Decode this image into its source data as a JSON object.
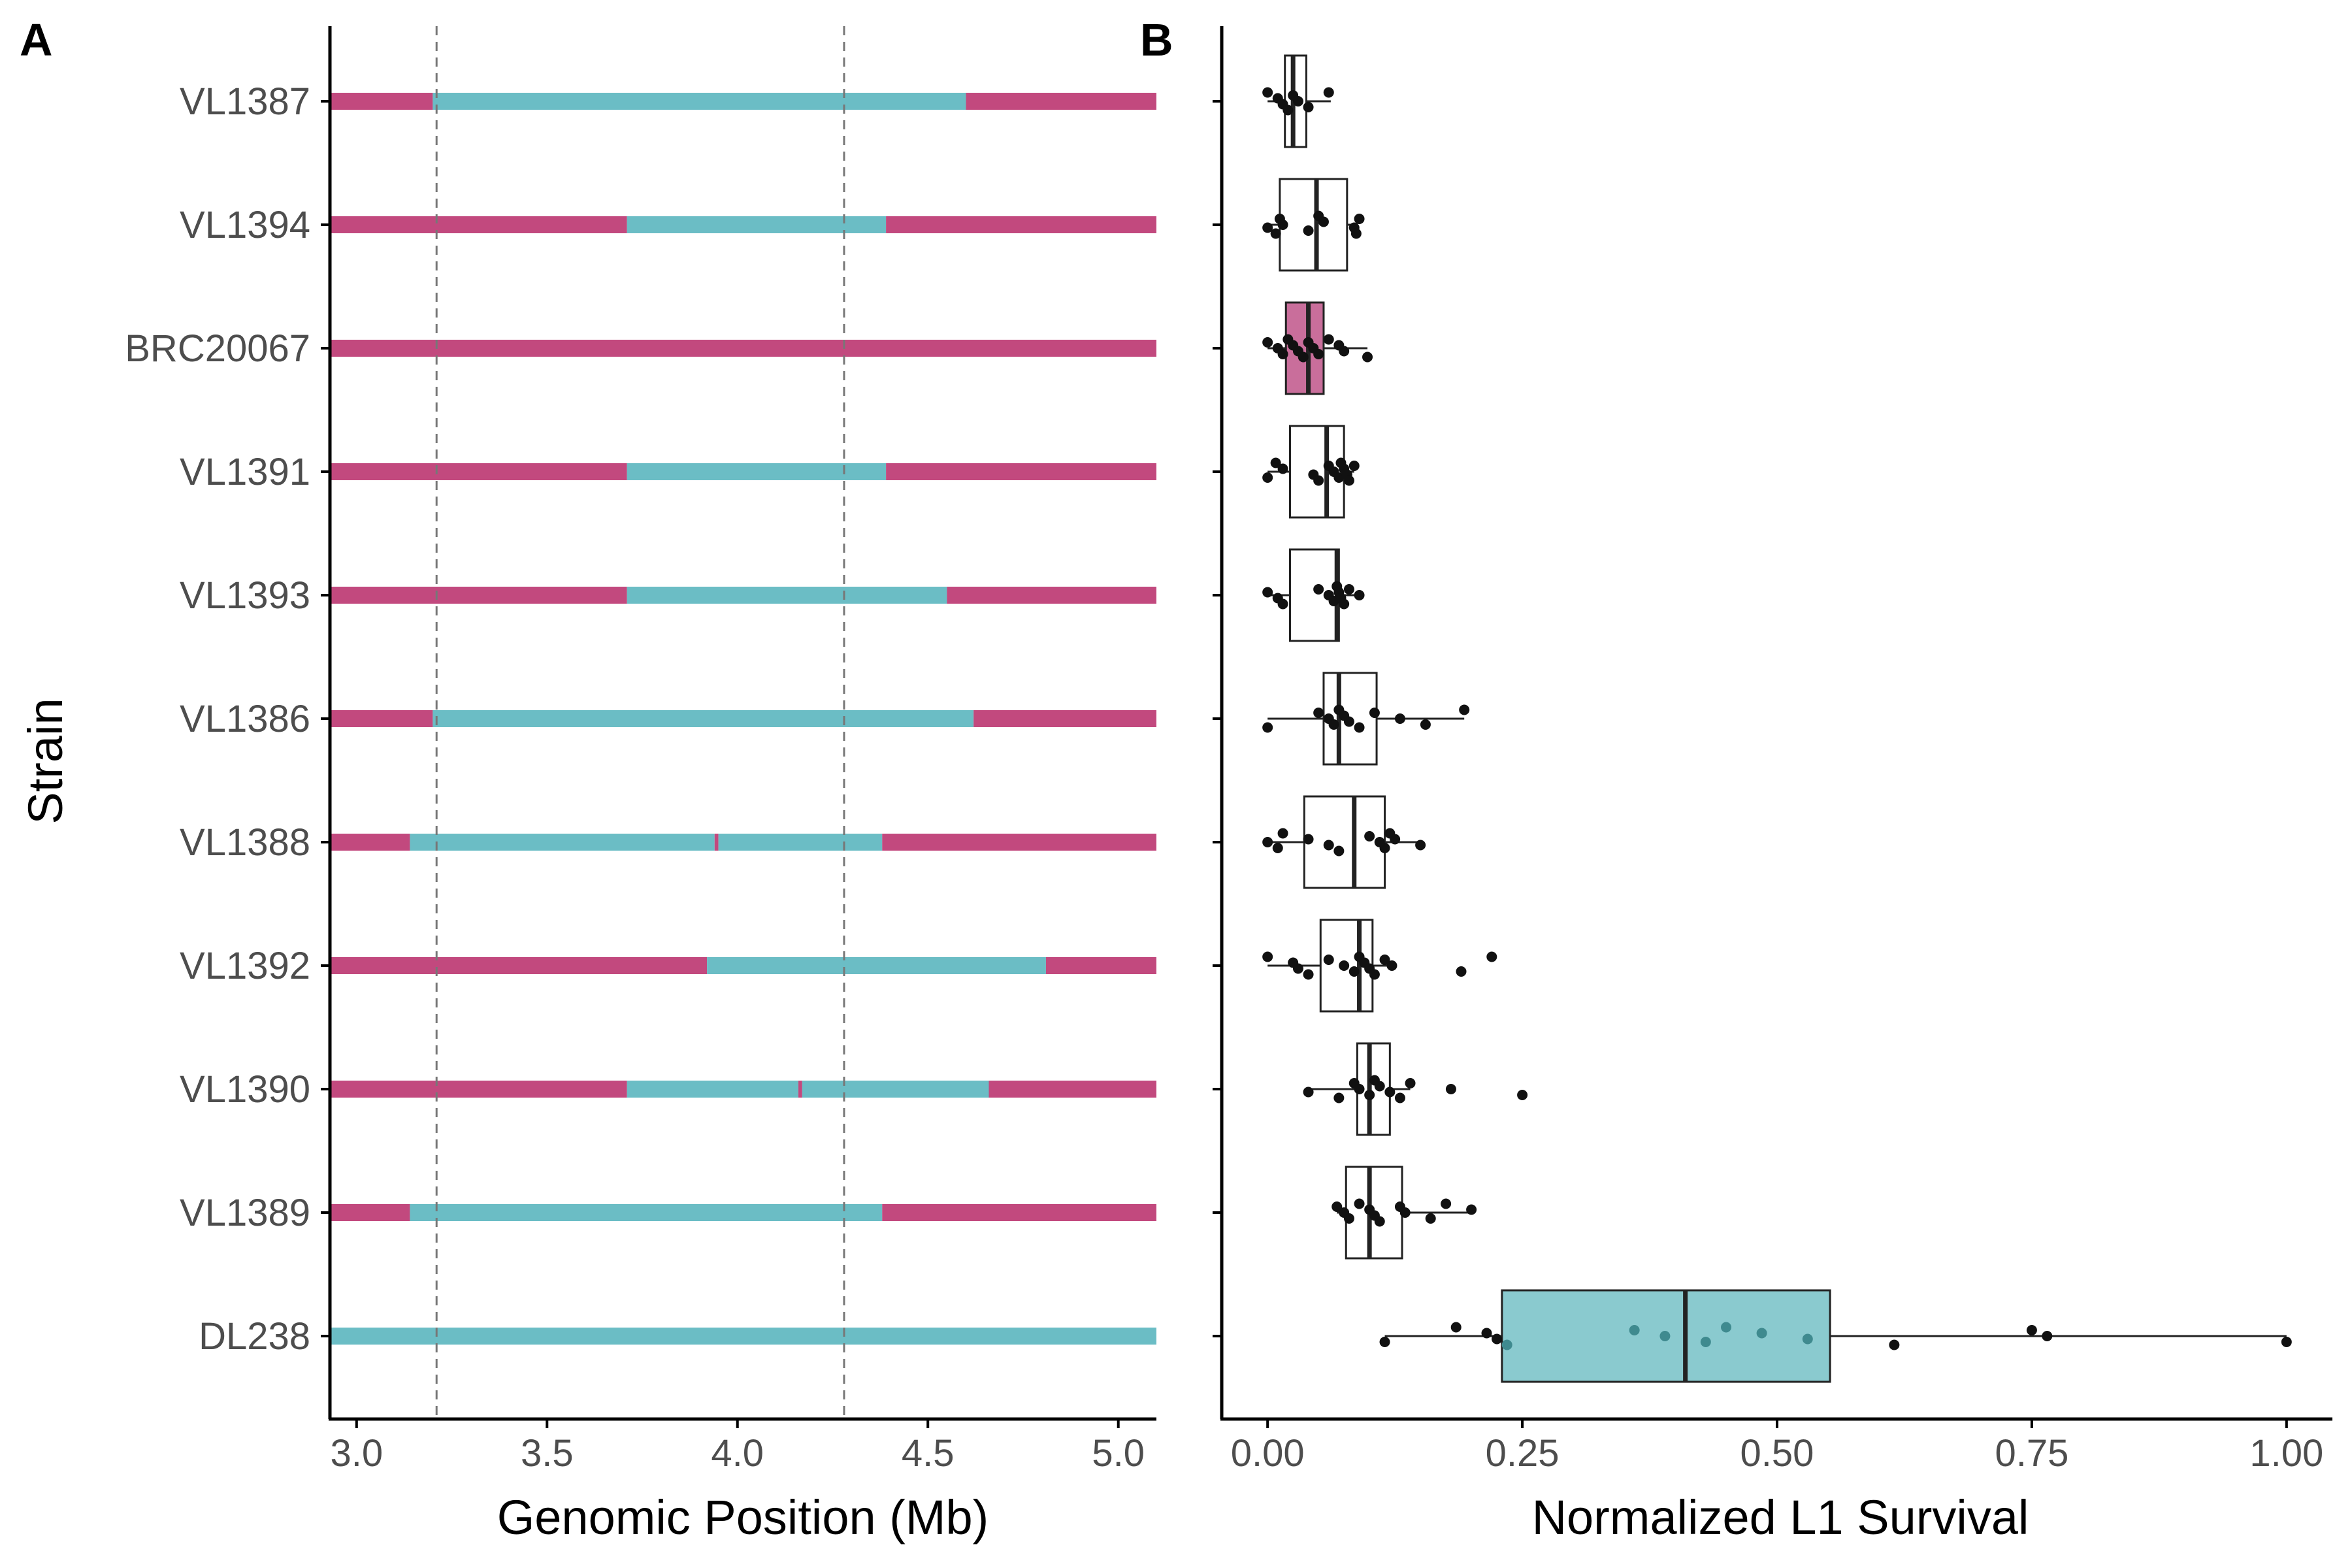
{
  "colors": {
    "alt_allele": "#C2497E",
    "ref_allele": "#6BBDC5",
    "brc_fill": "#C96E9B",
    "dl_fill": "#8ACACF",
    "axis": "#000000",
    "tick_text": "#4d4d4d",
    "point": "#111111",
    "guide_line": "#777777"
  },
  "chart_data": [
    {
      "id": "A",
      "type": "segments",
      "panel_label": "A",
      "xlabel": "Genomic Position (Mb)",
      "ylabel": "Strain",
      "xlim": [
        2.93,
        5.1
      ],
      "xticks": [
        3.0,
        3.5,
        4.0,
        4.5,
        5.0
      ],
      "xtick_labels": [
        "3.0",
        "3.5",
        "4.0",
        "4.5",
        "5.0"
      ],
      "guide_lines": [
        3.21,
        4.28
      ],
      "strains": [
        "VL1387",
        "VL1394",
        "BRC20067",
        "VL1391",
        "VL1393",
        "VL1386",
        "VL1388",
        "VL1392",
        "VL1390",
        "VL1389",
        "DL238"
      ],
      "segments": [
        [
          [
            2.93,
            3.2,
            "alt"
          ],
          [
            3.2,
            4.6,
            "ref"
          ],
          [
            4.6,
            5.1,
            "alt"
          ]
        ],
        [
          [
            2.93,
            3.71,
            "alt"
          ],
          [
            3.71,
            4.39,
            "ref"
          ],
          [
            4.39,
            5.1,
            "alt"
          ]
        ],
        [
          [
            2.93,
            5.1,
            "alt"
          ]
        ],
        [
          [
            2.93,
            3.71,
            "alt"
          ],
          [
            3.71,
            4.39,
            "ref"
          ],
          [
            4.39,
            5.1,
            "alt"
          ]
        ],
        [
          [
            2.93,
            3.71,
            "alt"
          ],
          [
            3.71,
            4.55,
            "ref"
          ],
          [
            4.55,
            5.1,
            "alt"
          ]
        ],
        [
          [
            2.93,
            3.2,
            "alt"
          ],
          [
            3.2,
            4.62,
            "ref"
          ],
          [
            4.62,
            5.1,
            "alt"
          ]
        ],
        [
          [
            2.93,
            3.14,
            "alt"
          ],
          [
            3.14,
            3.94,
            "ref"
          ],
          [
            3.94,
            3.95,
            "alt"
          ],
          [
            3.95,
            4.38,
            "ref"
          ],
          [
            4.38,
            5.1,
            "alt"
          ]
        ],
        [
          [
            2.93,
            3.92,
            "alt"
          ],
          [
            3.92,
            4.81,
            "ref"
          ],
          [
            4.81,
            5.1,
            "alt"
          ]
        ],
        [
          [
            2.93,
            3.71,
            "alt"
          ],
          [
            3.71,
            4.16,
            "ref"
          ],
          [
            4.16,
            4.17,
            "alt"
          ],
          [
            4.17,
            4.66,
            "ref"
          ],
          [
            4.66,
            5.1,
            "alt"
          ]
        ],
        [
          [
            2.93,
            3.14,
            "alt"
          ],
          [
            3.14,
            4.38,
            "ref"
          ],
          [
            4.38,
            5.1,
            "alt"
          ]
        ],
        [
          [
            2.93,
            5.1,
            "ref"
          ]
        ]
      ]
    },
    {
      "id": "B",
      "type": "boxplot",
      "panel_label": "B",
      "xlabel": "Normalized L1 Survival",
      "xlim": [
        -0.045,
        1.045
      ],
      "xticks": [
        0.0,
        0.25,
        0.5,
        0.75,
        1.0
      ],
      "xtick_labels": [
        "0.00",
        "0.25",
        "0.50",
        "0.75",
        "1.00"
      ],
      "categories": [
        "VL1387",
        "VL1394",
        "BRC20067",
        "VL1391",
        "VL1393",
        "VL1386",
        "VL1388",
        "VL1392",
        "VL1390",
        "VL1389",
        "DL238"
      ],
      "boxes": [
        {
          "q1": 0.017,
          "median": 0.025,
          "q3": 0.038,
          "whisker_low": 0.0,
          "whisker_high": 0.062,
          "fill": "none",
          "points": [
            0.0,
            0.01,
            0.015,
            0.02,
            0.025,
            0.03,
            0.04,
            0.06
          ]
        },
        {
          "q1": 0.012,
          "median": 0.048,
          "q3": 0.078,
          "whisker_low": 0.0,
          "whisker_high": 0.088,
          "fill": "none",
          "points": [
            0.0,
            0.008,
            0.012,
            0.015,
            0.04,
            0.05,
            0.055,
            0.085,
            0.087,
            0.09
          ]
        },
        {
          "q1": 0.018,
          "median": 0.04,
          "q3": 0.055,
          "whisker_low": 0.0,
          "whisker_high": 0.098,
          "fill": "brc",
          "points": [
            0.0,
            0.01,
            0.015,
            0.02,
            0.025,
            0.03,
            0.035,
            0.04,
            0.045,
            0.05,
            0.06,
            0.07,
            0.075,
            0.098
          ]
        },
        {
          "q1": 0.022,
          "median": 0.058,
          "q3": 0.075,
          "whisker_low": 0.0,
          "whisker_high": 0.085,
          "fill": "none",
          "points": [
            0.0,
            0.008,
            0.015,
            0.045,
            0.05,
            0.06,
            0.065,
            0.07,
            0.072,
            0.075,
            0.078,
            0.08,
            0.085
          ]
        },
        {
          "q1": 0.022,
          "median": 0.068,
          "q3": 0.07,
          "whisker_low": 0.0,
          "whisker_high": 0.09,
          "fill": "none",
          "points": [
            0.0,
            0.01,
            0.015,
            0.05,
            0.06,
            0.065,
            0.068,
            0.07,
            0.072,
            0.075,
            0.08,
            0.09
          ]
        },
        {
          "q1": 0.055,
          "median": 0.07,
          "q3": 0.107,
          "whisker_low": 0.0,
          "whisker_high": 0.193,
          "fill": "none",
          "points": [
            0.0,
            0.05,
            0.06,
            0.065,
            0.07,
            0.075,
            0.08,
            0.09,
            0.105,
            0.13,
            0.155,
            0.193
          ]
        },
        {
          "q1": 0.036,
          "median": 0.085,
          "q3": 0.115,
          "whisker_low": 0.0,
          "whisker_high": 0.15,
          "fill": "none",
          "points": [
            0.0,
            0.01,
            0.015,
            0.04,
            0.06,
            0.07,
            0.1,
            0.11,
            0.115,
            0.12,
            0.125,
            0.15
          ]
        },
        {
          "q1": 0.052,
          "median": 0.09,
          "q3": 0.103,
          "whisker_low": 0.0,
          "whisker_high": 0.122,
          "fill": "none",
          "points": [
            0.0,
            0.025,
            0.03,
            0.04,
            0.06,
            0.075,
            0.085,
            0.09,
            0.095,
            0.1,
            0.105,
            0.115,
            0.122,
            0.19,
            0.22
          ]
        },
        {
          "q1": 0.088,
          "median": 0.1,
          "q3": 0.12,
          "whisker_low": 0.04,
          "whisker_high": 0.14,
          "fill": "none",
          "points": [
            0.04,
            0.07,
            0.085,
            0.09,
            0.1,
            0.105,
            0.11,
            0.12,
            0.13,
            0.14,
            0.18,
            0.25
          ]
        },
        {
          "q1": 0.077,
          "median": 0.1,
          "q3": 0.132,
          "whisker_low": 0.068,
          "whisker_high": 0.2,
          "fill": "none",
          "points": [
            0.068,
            0.075,
            0.08,
            0.09,
            0.1,
            0.105,
            0.11,
            0.13,
            0.135,
            0.16,
            0.175,
            0.2
          ]
        },
        {
          "q1": 0.23,
          "median": 0.41,
          "q3": 0.552,
          "whisker_low": 0.115,
          "whisker_high": 1.0,
          "fill": "dl",
          "points": [
            0.115,
            0.185,
            0.215,
            0.225,
            0.235,
            0.36,
            0.39,
            0.43,
            0.45,
            0.485,
            0.53,
            0.615,
            0.75,
            0.765,
            1.0
          ]
        }
      ]
    }
  ]
}
